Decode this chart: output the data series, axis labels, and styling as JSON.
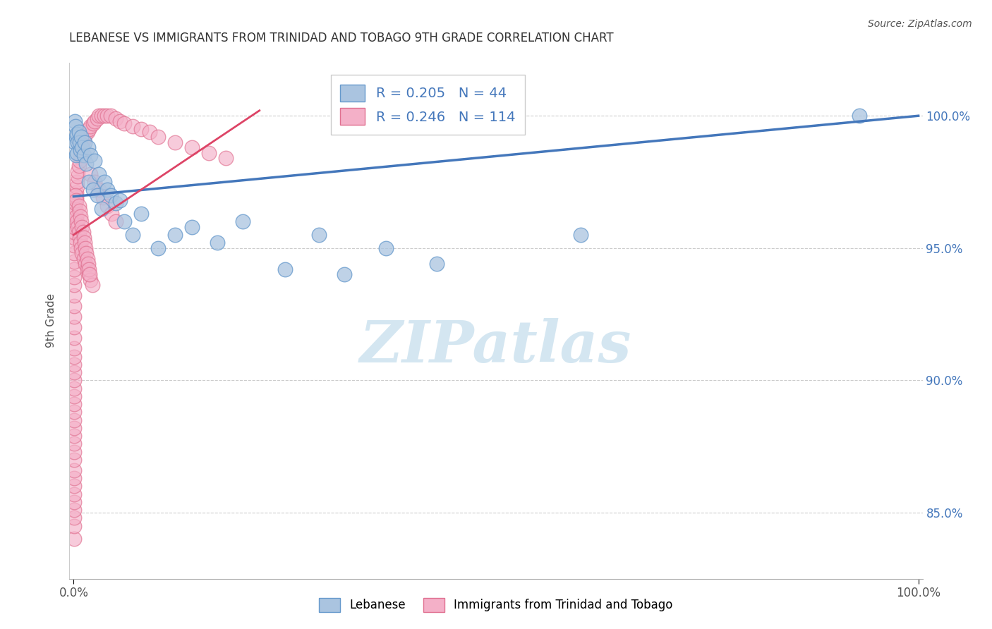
{
  "title": "LEBANESE VS IMMIGRANTS FROM TRINIDAD AND TOBAGO 9TH GRADE CORRELATION CHART",
  "source": "Source: ZipAtlas.com",
  "ylabel": "9th Grade",
  "y_ticks": [
    0.85,
    0.9,
    0.95,
    1.0
  ],
  "y_tick_labels": [
    "85.0%",
    "90.0%",
    "95.0%",
    "100.0%"
  ],
  "x_lim": [
    -0.005,
    1.005
  ],
  "y_lim": [
    0.825,
    1.02
  ],
  "legend_blue_r": "0.205",
  "legend_blue_n": "44",
  "legend_pink_r": "0.246",
  "legend_pink_n": "114",
  "blue_face_color": "#aac4e0",
  "blue_edge_color": "#6699cc",
  "pink_face_color": "#f4b0c8",
  "pink_edge_color": "#e07090",
  "blue_line_color": "#4477bb",
  "pink_line_color": "#dd4466",
  "watermark_color": "#d0e4f0",
  "blue_scatter_x": [
    0.001,
    0.001,
    0.002,
    0.003,
    0.003,
    0.004,
    0.004,
    0.005,
    0.006,
    0.007,
    0.008,
    0.009,
    0.01,
    0.012,
    0.013,
    0.015,
    0.017,
    0.018,
    0.02,
    0.023,
    0.025,
    0.028,
    0.03,
    0.033,
    0.036,
    0.04,
    0.044,
    0.05,
    0.055,
    0.06,
    0.07,
    0.08,
    0.1,
    0.12,
    0.14,
    0.17,
    0.2,
    0.25,
    0.29,
    0.32,
    0.37,
    0.43,
    0.6,
    0.93
  ],
  "blue_scatter_y": [
    0.99,
    0.998,
    0.996,
    0.992,
    0.985,
    0.993,
    0.986,
    0.99,
    0.994,
    0.99,
    0.987,
    0.992,
    0.988,
    0.985,
    0.99,
    0.982,
    0.988,
    0.975,
    0.985,
    0.972,
    0.983,
    0.97,
    0.978,
    0.965,
    0.975,
    0.972,
    0.97,
    0.967,
    0.968,
    0.96,
    0.955,
    0.963,
    0.95,
    0.955,
    0.958,
    0.952,
    0.96,
    0.942,
    0.955,
    0.94,
    0.95,
    0.944,
    0.955,
    1.0
  ],
  "pink_scatter_x": [
    0.0001,
    0.0001,
    0.0001,
    0.0001,
    0.0001,
    0.0001,
    0.0001,
    0.0001,
    0.0001,
    0.0001,
    0.0001,
    0.0001,
    0.0001,
    0.0001,
    0.0001,
    0.0001,
    0.0001,
    0.0001,
    0.0001,
    0.0001,
    0.0002,
    0.0002,
    0.0002,
    0.0002,
    0.0002,
    0.0002,
    0.0003,
    0.0003,
    0.0003,
    0.0003,
    0.0004,
    0.0004,
    0.0005,
    0.0005,
    0.0006,
    0.0007,
    0.0008,
    0.0009,
    0.001,
    0.001,
    0.002,
    0.002,
    0.003,
    0.003,
    0.004,
    0.004,
    0.005,
    0.005,
    0.006,
    0.007,
    0.008,
    0.009,
    0.01,
    0.012,
    0.014,
    0.016,
    0.018,
    0.02,
    0.023,
    0.025,
    0.028,
    0.03,
    0.033,
    0.036,
    0.04,
    0.044,
    0.05,
    0.055,
    0.06,
    0.07,
    0.08,
    0.09,
    0.1,
    0.12,
    0.14,
    0.16,
    0.18,
    0.02,
    0.025,
    0.03,
    0.035,
    0.04,
    0.045,
    0.05,
    0.003,
    0.004,
    0.005,
    0.006,
    0.007,
    0.008,
    0.009,
    0.01,
    0.012,
    0.014,
    0.016,
    0.018,
    0.02,
    0.022,
    0.002,
    0.003,
    0.006,
    0.007,
    0.008,
    0.009,
    0.01,
    0.011,
    0.012,
    0.013,
    0.014,
    0.015,
    0.016,
    0.017,
    0.018,
    0.019
  ],
  "pink_scatter_y": [
    0.84,
    0.845,
    0.848,
    0.851,
    0.854,
    0.857,
    0.86,
    0.863,
    0.866,
    0.87,
    0.873,
    0.876,
    0.879,
    0.882,
    0.885,
    0.888,
    0.891,
    0.894,
    0.897,
    0.9,
    0.903,
    0.906,
    0.909,
    0.912,
    0.916,
    0.92,
    0.924,
    0.928,
    0.932,
    0.936,
    0.939,
    0.942,
    0.945,
    0.948,
    0.951,
    0.954,
    0.956,
    0.958,
    0.96,
    0.963,
    0.965,
    0.967,
    0.969,
    0.971,
    0.973,
    0.975,
    0.977,
    0.979,
    0.981,
    0.983,
    0.985,
    0.987,
    0.989,
    0.991,
    0.993,
    0.994,
    0.995,
    0.996,
    0.997,
    0.998,
    0.999,
    1.0,
    1.0,
    1.0,
    1.0,
    1.0,
    0.999,
    0.998,
    0.997,
    0.996,
    0.995,
    0.994,
    0.992,
    0.99,
    0.988,
    0.986,
    0.984,
    0.978,
    0.975,
    0.972,
    0.969,
    0.966,
    0.963,
    0.96,
    0.962,
    0.96,
    0.958,
    0.956,
    0.954,
    0.952,
    0.95,
    0.948,
    0.946,
    0.944,
    0.942,
    0.94,
    0.938,
    0.936,
    0.97,
    0.968,
    0.966,
    0.964,
    0.962,
    0.96,
    0.958,
    0.956,
    0.954,
    0.952,
    0.95,
    0.948,
    0.946,
    0.944,
    0.942,
    0.94
  ],
  "blue_trend_x0": 0.0,
  "blue_trend_y0": 0.9695,
  "blue_trend_x1": 1.0,
  "blue_trend_y1": 1.0,
  "pink_trend_x0": 0.0,
  "pink_trend_y0": 0.955,
  "pink_trend_x1": 0.22,
  "pink_trend_y1": 1.002
}
